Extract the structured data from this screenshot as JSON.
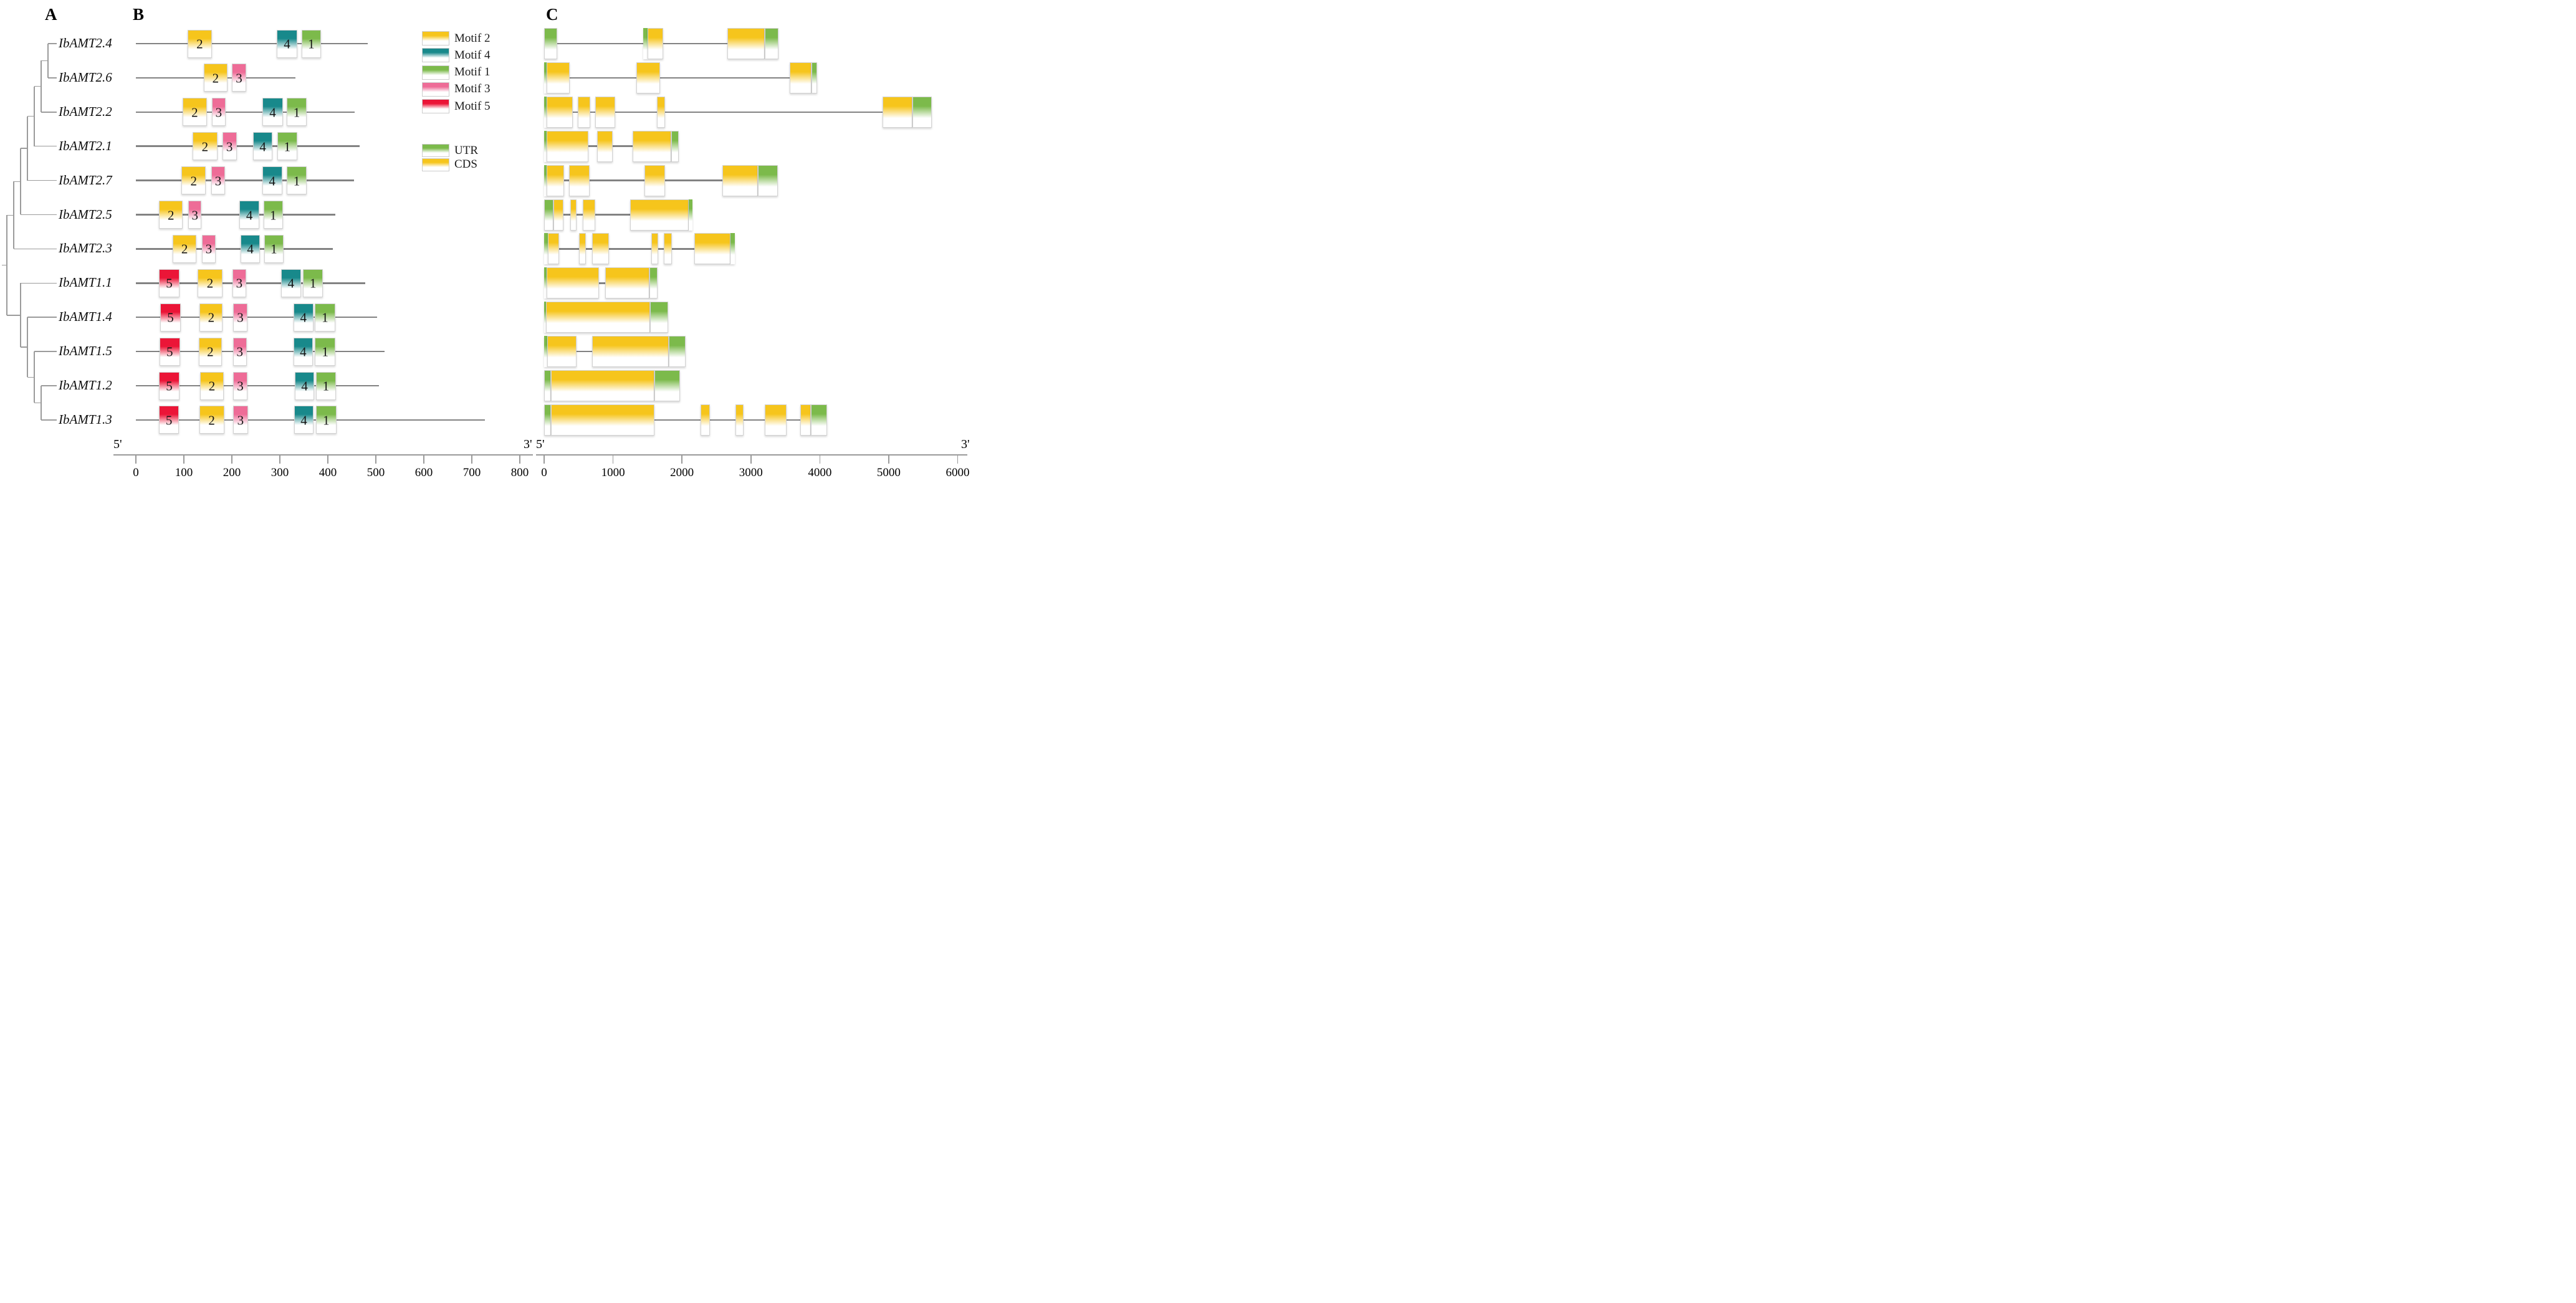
{
  "panel_labels": {
    "a": "A",
    "b": "B",
    "c": "C"
  },
  "legend": {
    "motifs": [
      {
        "label": "Motif 2",
        "color": "#F6C51C"
      },
      {
        "label": "Motif 4",
        "color": "#18898B"
      },
      {
        "label": "Motif 1",
        "color": "#7CBA4B"
      },
      {
        "label": "Motif 3",
        "color": "#EE6C97"
      },
      {
        "label": "Motif 5",
        "color": "#EB1537"
      }
    ],
    "structure": [
      {
        "label": "UTR",
        "color": "#7CBA4B"
      },
      {
        "label": "CDS",
        "color": "#F6C51C"
      }
    ]
  },
  "axis_b": {
    "five_prime": "5'",
    "three_prime": "3'",
    "ticks": [
      0,
      100,
      200,
      300,
      400,
      500,
      600,
      700,
      800
    ]
  },
  "axis_c": {
    "five_prime": "5'",
    "three_prime": "3'",
    "ticks": [
      0,
      1000,
      2000,
      3000,
      4000,
      5000,
      6000
    ]
  },
  "chart_data": {
    "type": "table",
    "description": "Phylogenetic tree (A), conserved protein motifs (B, amino acids 0-800) and UTR/CDS gene structures (C, base pairs 0-6000) of 12 IbAMT ammonium transporter genes",
    "b_axis": {
      "min": 0,
      "max": 800,
      "step": 100,
      "unit": "aa"
    },
    "c_axis": {
      "min": 0,
      "max": 6000,
      "step": 1000,
      "unit": "bp"
    },
    "motif_colors": {
      "1": "#7CBA4B",
      "2": "#F6C51C",
      "3": "#EE6C97",
      "4": "#18898B",
      "5": "#EB1537"
    },
    "structure_colors": {
      "UTR": "#7CBA4B",
      "CDS": "#F6C51C"
    },
    "genes": [
      {
        "name": "IbAMT2.4",
        "protein_length": 483,
        "motifs": [
          {
            "motif": "2",
            "start": 108,
            "end": 158
          },
          {
            "motif": "4",
            "start": 294,
            "end": 336
          },
          {
            "motif": "1",
            "start": 345,
            "end": 386
          }
        ],
        "gene_length": 3400,
        "features": [
          {
            "type": "UTR",
            "start": 0,
            "end": 190
          },
          {
            "type": "UTR",
            "start": 1435,
            "end": 1497
          },
          {
            "type": "CDS",
            "start": 1497,
            "end": 1727
          },
          {
            "type": "CDS",
            "start": 2660,
            "end": 3205
          },
          {
            "type": "UTR",
            "start": 3205,
            "end": 3400
          }
        ]
      },
      {
        "name": "IbAMT2.6",
        "protein_length": 332,
        "motifs": [
          {
            "motif": "2",
            "start": 141,
            "end": 191
          },
          {
            "motif": "3",
            "start": 200,
            "end": 230
          }
        ],
        "gene_length": 3960,
        "features": [
          {
            "type": "UTR",
            "start": 0,
            "end": 38
          },
          {
            "type": "CDS",
            "start": 38,
            "end": 370
          },
          {
            "type": "CDS",
            "start": 1337,
            "end": 1683
          },
          {
            "type": "CDS",
            "start": 3565,
            "end": 3880
          },
          {
            "type": "UTR",
            "start": 3880,
            "end": 3960
          }
        ]
      },
      {
        "name": "IbAMT2.2",
        "protein_length": 456,
        "motifs": [
          {
            "motif": "2",
            "start": 97,
            "end": 148
          },
          {
            "motif": "3",
            "start": 158,
            "end": 187
          },
          {
            "motif": "4",
            "start": 264,
            "end": 306
          },
          {
            "motif": "1",
            "start": 314,
            "end": 356
          }
        ],
        "gene_length": 5625,
        "features": [
          {
            "type": "UTR",
            "start": 0,
            "end": 38
          },
          {
            "type": "CDS",
            "start": 38,
            "end": 418
          },
          {
            "type": "CDS",
            "start": 487,
            "end": 665
          },
          {
            "type": "CDS",
            "start": 740,
            "end": 1032
          },
          {
            "type": "CDS",
            "start": 1635,
            "end": 1756
          },
          {
            "type": "CDS",
            "start": 4908,
            "end": 5340
          },
          {
            "type": "UTR",
            "start": 5340,
            "end": 5625
          }
        ]
      },
      {
        "name": "IbAMT2.1",
        "protein_length": 466,
        "motifs": [
          {
            "motif": "2",
            "start": 118,
            "end": 170
          },
          {
            "motif": "3",
            "start": 180,
            "end": 210
          },
          {
            "motif": "4",
            "start": 244,
            "end": 285
          },
          {
            "motif": "1",
            "start": 295,
            "end": 336
          }
        ],
        "gene_length": 1952,
        "features": [
          {
            "type": "UTR",
            "start": 0,
            "end": 34
          },
          {
            "type": "CDS",
            "start": 34,
            "end": 645
          },
          {
            "type": "CDS",
            "start": 771,
            "end": 993
          },
          {
            "type": "CDS",
            "start": 1288,
            "end": 1846
          },
          {
            "type": "UTR",
            "start": 1846,
            "end": 1952
          }
        ]
      },
      {
        "name": "IbAMT2.7",
        "protein_length": 454,
        "motifs": [
          {
            "motif": "2",
            "start": 95,
            "end": 146
          },
          {
            "motif": "3",
            "start": 157,
            "end": 186
          },
          {
            "motif": "4",
            "start": 263,
            "end": 305
          },
          {
            "motif": "1",
            "start": 314,
            "end": 356
          }
        ],
        "gene_length": 3390,
        "features": [
          {
            "type": "UTR",
            "start": 0,
            "end": 40
          },
          {
            "type": "CDS",
            "start": 40,
            "end": 290
          },
          {
            "type": "CDS",
            "start": 360,
            "end": 660
          },
          {
            "type": "CDS",
            "start": 1460,
            "end": 1757
          },
          {
            "type": "CDS",
            "start": 2589,
            "end": 3103
          },
          {
            "type": "UTR",
            "start": 3103,
            "end": 3390
          }
        ]
      },
      {
        "name": "IbAMT2.5",
        "protein_length": 416,
        "motifs": [
          {
            "motif": "2",
            "start": 48,
            "end": 98
          },
          {
            "motif": "3",
            "start": 109,
            "end": 137
          },
          {
            "motif": "4",
            "start": 216,
            "end": 257
          },
          {
            "motif": "1",
            "start": 266,
            "end": 306
          }
        ],
        "gene_length": 2150,
        "features": [
          {
            "type": "UTR",
            "start": 0,
            "end": 137
          },
          {
            "type": "CDS",
            "start": 137,
            "end": 281
          },
          {
            "type": "CDS",
            "start": 381,
            "end": 466
          },
          {
            "type": "CDS",
            "start": 559,
            "end": 744
          },
          {
            "type": "CDS",
            "start": 1244,
            "end": 2101
          },
          {
            "type": "UTR",
            "start": 2101,
            "end": 2150
          }
        ]
      },
      {
        "name": "IbAMT2.3",
        "protein_length": 410,
        "motifs": [
          {
            "motif": "2",
            "start": 77,
            "end": 126
          },
          {
            "motif": "3",
            "start": 138,
            "end": 166
          },
          {
            "motif": "4",
            "start": 218,
            "end": 259
          },
          {
            "motif": "1",
            "start": 267,
            "end": 308
          }
        ],
        "gene_length": 2770,
        "features": [
          {
            "type": "UTR",
            "start": 0,
            "end": 55
          },
          {
            "type": "CDS",
            "start": 55,
            "end": 216
          },
          {
            "type": "CDS",
            "start": 507,
            "end": 603
          },
          {
            "type": "CDS",
            "start": 696,
            "end": 943
          },
          {
            "type": "CDS",
            "start": 1553,
            "end": 1659
          },
          {
            "type": "CDS",
            "start": 1735,
            "end": 1855
          },
          {
            "type": "CDS",
            "start": 2177,
            "end": 2705
          },
          {
            "type": "UTR",
            "start": 2705,
            "end": 2770
          }
        ]
      },
      {
        "name": "IbAMT1.1",
        "protein_length": 478,
        "motifs": [
          {
            "motif": "5",
            "start": 48,
            "end": 91
          },
          {
            "motif": "2",
            "start": 129,
            "end": 180
          },
          {
            "motif": "3",
            "start": 201,
            "end": 230
          },
          {
            "motif": "4",
            "start": 302,
            "end": 344
          },
          {
            "motif": "1",
            "start": 348,
            "end": 390
          }
        ],
        "gene_length": 1644,
        "features": [
          {
            "type": "UTR",
            "start": 0,
            "end": 40
          },
          {
            "type": "CDS",
            "start": 40,
            "end": 800
          },
          {
            "type": "CDS",
            "start": 884,
            "end": 1527
          },
          {
            "type": "UTR",
            "start": 1527,
            "end": 1644
          }
        ]
      },
      {
        "name": "IbAMT1.4",
        "protein_length": 502,
        "motifs": [
          {
            "motif": "5",
            "start": 51,
            "end": 93
          },
          {
            "motif": "2",
            "start": 133,
            "end": 181
          },
          {
            "motif": "3",
            "start": 203,
            "end": 232
          },
          {
            "motif": "4",
            "start": 328,
            "end": 370
          },
          {
            "motif": "1",
            "start": 373,
            "end": 415
          }
        ],
        "gene_length": 1801,
        "features": [
          {
            "type": "UTR",
            "start": 0,
            "end": 25
          },
          {
            "type": "CDS",
            "start": 25,
            "end": 1541
          },
          {
            "type": "UTR",
            "start": 1541,
            "end": 1801
          }
        ]
      },
      {
        "name": "IbAMT1.5",
        "protein_length": 518,
        "motifs": [
          {
            "motif": "5",
            "start": 49,
            "end": 92
          },
          {
            "motif": "2",
            "start": 131,
            "end": 179
          },
          {
            "motif": "3",
            "start": 202,
            "end": 231
          },
          {
            "motif": "4",
            "start": 328,
            "end": 369
          },
          {
            "motif": "1",
            "start": 373,
            "end": 416
          }
        ],
        "gene_length": 2055,
        "features": [
          {
            "type": "UTR",
            "start": 0,
            "end": 45
          },
          {
            "type": "CDS",
            "start": 45,
            "end": 473
          },
          {
            "type": "CDS",
            "start": 699,
            "end": 1808
          },
          {
            "type": "UTR",
            "start": 1808,
            "end": 2055
          }
        ]
      },
      {
        "name": "IbAMT1.2",
        "protein_length": 506,
        "motifs": [
          {
            "motif": "5",
            "start": 48,
            "end": 91
          },
          {
            "motif": "2",
            "start": 134,
            "end": 183
          },
          {
            "motif": "3",
            "start": 203,
            "end": 232
          },
          {
            "motif": "4",
            "start": 331,
            "end": 372
          },
          {
            "motif": "1",
            "start": 375,
            "end": 417
          }
        ],
        "gene_length": 1973,
        "features": [
          {
            "type": "UTR",
            "start": 0,
            "end": 95
          },
          {
            "type": "CDS",
            "start": 95,
            "end": 1602
          },
          {
            "type": "UTR",
            "start": 1602,
            "end": 1973
          }
        ]
      },
      {
        "name": "IbAMT1.3",
        "protein_length": 727,
        "motifs": [
          {
            "motif": "5",
            "start": 48,
            "end": 90
          },
          {
            "motif": "2",
            "start": 132,
            "end": 184
          },
          {
            "motif": "3",
            "start": 202,
            "end": 234
          },
          {
            "motif": "4",
            "start": 330,
            "end": 370
          },
          {
            "motif": "1",
            "start": 375,
            "end": 418
          }
        ],
        "gene_length": 4110,
        "features": [
          {
            "type": "UTR",
            "start": 0,
            "end": 95
          },
          {
            "type": "CDS",
            "start": 95,
            "end": 1602
          },
          {
            "type": "CDS",
            "start": 2267,
            "end": 2404
          },
          {
            "type": "CDS",
            "start": 2774,
            "end": 2897
          },
          {
            "type": "CDS",
            "start": 3205,
            "end": 3514
          },
          {
            "type": "CDS",
            "start": 3719,
            "end": 3870
          },
          {
            "type": "UTR",
            "start": 3870,
            "end": 4110
          }
        ]
      }
    ],
    "tree": {
      "x": 11,
      "children": [
        {
          "x": 22,
          "children": [
            {
              "x": 33,
              "children": [
                {
                  "x": 44,
                  "children": [
                    {
                      "x": 55,
                      "children": [
                        {
                          "x": 66,
                          "children": [
                            {
                              "x": 77,
                              "children": [
                                {
                                  "leaf": 0
                                },
                                {
                                  "leaf": 1
                                }
                              ]
                            },
                            {
                              "leaf": 2
                            }
                          ]
                        },
                        {
                          "leaf": 3
                        }
                      ]
                    },
                    {
                      "leaf": 4
                    }
                  ]
                },
                {
                  "leaf": 5
                }
              ]
            },
            {
              "leaf": 6
            }
          ]
        },
        {
          "x": 33,
          "children": [
            {
              "leaf": 7
            },
            {
              "x": 44,
              "children": [
                {
                  "leaf": 8
                },
                {
                  "x": 55,
                  "children": [
                    {
                      "leaf": 9
                    },
                    {
                      "x": 66,
                      "children": [
                        {
                          "leaf": 10
                        },
                        {
                          "leaf": 11
                        }
                      ]
                    }
                  ]
                }
              ]
            }
          ]
        }
      ]
    }
  }
}
